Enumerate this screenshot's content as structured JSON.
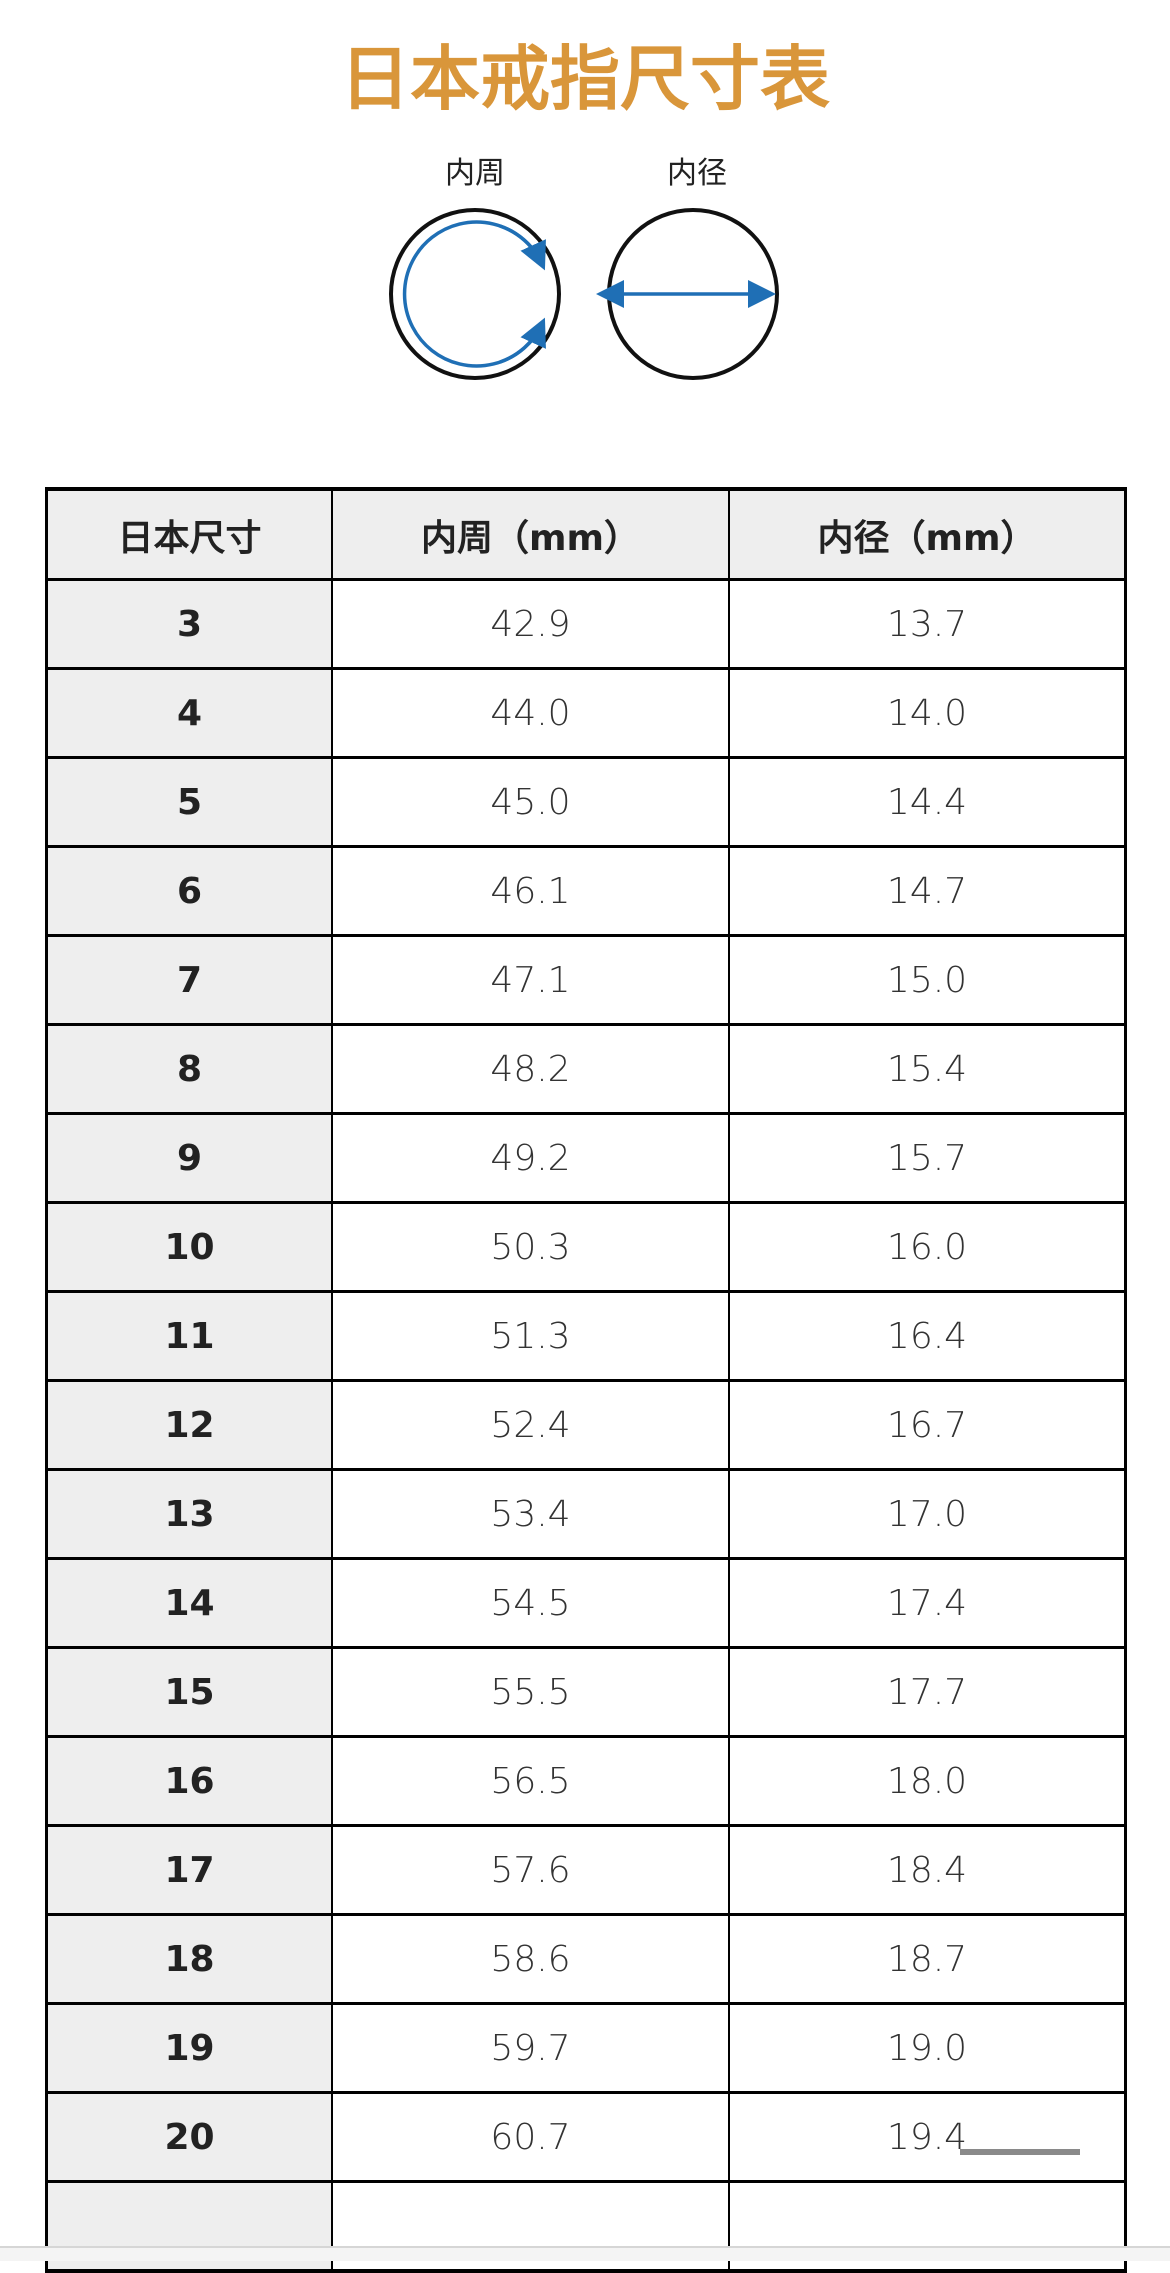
{
  "title": "日本戒指尺寸表",
  "colors": {
    "title": "#d9963a",
    "arrow": "#1f6fb5",
    "header_bg": "#eeeeee"
  },
  "diagram": {
    "circumference_label": "内周",
    "diameter_label": "内径"
  },
  "table": {
    "headers": [
      "日本尺寸",
      "内周（mm）",
      "内径（mm）"
    ],
    "rows": [
      [
        "3",
        "42.9",
        "13.7"
      ],
      [
        "4",
        "44.0",
        "14.0"
      ],
      [
        "5",
        "45.0",
        "14.4"
      ],
      [
        "6",
        "46.1",
        "14.7"
      ],
      [
        "7",
        "47.1",
        "15.0"
      ],
      [
        "8",
        "48.2",
        "15.4"
      ],
      [
        "9",
        "49.2",
        "15.7"
      ],
      [
        "10",
        "50.3",
        "16.0"
      ],
      [
        "11",
        "51.3",
        "16.4"
      ],
      [
        "12",
        "52.4",
        "16.7"
      ],
      [
        "13",
        "53.4",
        "17.0"
      ],
      [
        "14",
        "54.5",
        "17.4"
      ],
      [
        "15",
        "55.5",
        "17.7"
      ],
      [
        "16",
        "56.5",
        "18.0"
      ],
      [
        "17",
        "57.6",
        "18.4"
      ],
      [
        "18",
        "58.6",
        "18.7"
      ],
      [
        "19",
        "59.7",
        "19.0"
      ],
      [
        "20",
        "60.7",
        "19.4"
      ]
    ]
  }
}
